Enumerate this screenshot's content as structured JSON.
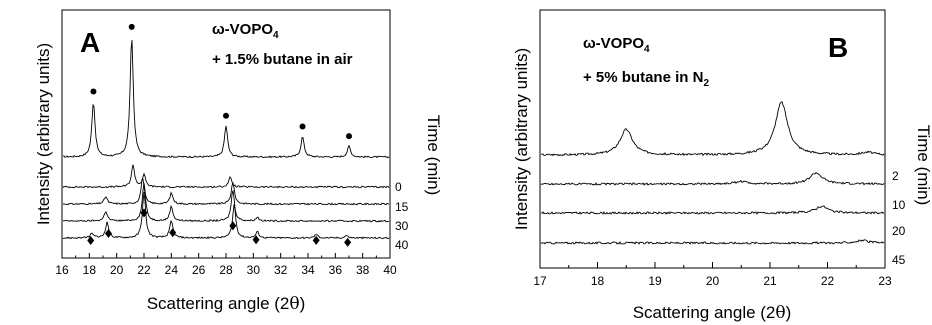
{
  "chart_data": [
    {
      "type": "line",
      "panel_letter": "A",
      "compound": "ω-VOPO",
      "compound_subscript": "4",
      "atmosphere_text": "+ 1.5%  butane in air",
      "xlabel_main": "Scattering angle (2",
      "xlabel_symbol": "θ",
      "xlabel_close": ")",
      "ylabel": "Intensity (arbitrary units)",
      "time_axis_label": "Time (min)",
      "xlim": [
        16,
        40
      ],
      "xticks": [
        16,
        18,
        20,
        22,
        24,
        26,
        28,
        30,
        32,
        34,
        36,
        38,
        40
      ],
      "series": [
        {
          "time_label": "",
          "peaks": [
            [
              18.3,
              46
            ],
            [
              21.1,
              100
            ],
            [
              28.0,
              26
            ],
            [
              33.6,
              17
            ],
            [
              37.0,
              9
            ]
          ]
        },
        {
          "time_label": "0",
          "peaks": [
            [
              21.2,
              18
            ],
            [
              22.0,
              10
            ],
            [
              28.3,
              8
            ]
          ]
        },
        {
          "time_label": "15",
          "peaks": [
            [
              19.2,
              6
            ],
            [
              21.9,
              22
            ],
            [
              24.0,
              9
            ],
            [
              28.5,
              18
            ]
          ]
        },
        {
          "time_label": "30",
          "peaks": [
            [
              19.2,
              8
            ],
            [
              22.0,
              32
            ],
            [
              24.0,
              12
            ],
            [
              28.5,
              26
            ],
            [
              30.3,
              3
            ]
          ]
        },
        {
          "time_label": "40",
          "peaks": [
            [
              18.2,
              4
            ],
            [
              19.3,
              13
            ],
            [
              22.0,
              38
            ],
            [
              24.0,
              14
            ],
            [
              28.6,
              28
            ],
            [
              30.3,
              5
            ],
            [
              34.6,
              3
            ],
            [
              36.8,
              2
            ]
          ]
        }
      ],
      "circle_markers_x": [
        18.3,
        21.1,
        28.0,
        33.6,
        37.0
      ],
      "diamond_markers_x": [
        18.1,
        19.4,
        22.0,
        24.1,
        28.5,
        30.2,
        34.6,
        36.9
      ]
    },
    {
      "type": "line",
      "panel_letter": "B",
      "compound": "ω-VOPO",
      "compound_subscript": "4",
      "atmosphere_text": "+ 5% butane in N",
      "atmosphere_subscript": "2",
      "xlabel_main": "Scattering angle (2",
      "xlabel_symbol": "θ",
      "xlabel_close": ")",
      "ylabel": "Intensity (arbitrary units)",
      "time_axis_label": "Time (min)",
      "xlim": [
        17,
        23
      ],
      "xticks": [
        17,
        18,
        19,
        20,
        21,
        22,
        23
      ],
      "series": [
        {
          "time_label": "2",
          "peaks": [
            [
              18.5,
              30
            ],
            [
              21.2,
              62
            ],
            [
              22.7,
              3
            ]
          ]
        },
        {
          "time_label": "10",
          "peaks": [
            [
              20.5,
              3
            ],
            [
              21.8,
              13
            ]
          ]
        },
        {
          "time_label": "20",
          "peaks": [
            [
              21.9,
              8
            ]
          ]
        },
        {
          "time_label": "45",
          "peaks": [
            [
              22.6,
              3
            ]
          ]
        }
      ]
    }
  ]
}
